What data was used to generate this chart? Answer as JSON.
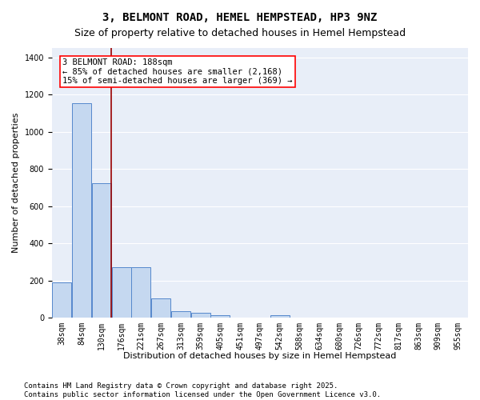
{
  "title1": "3, BELMONT ROAD, HEMEL HEMPSTEAD, HP3 9NZ",
  "title2": "Size of property relative to detached houses in Hemel Hempstead",
  "xlabel": "Distribution of detached houses by size in Hemel Hempstead",
  "ylabel": "Number of detached properties",
  "bar_color": "#c5d8f0",
  "bar_edge_color": "#5588cc",
  "background_color": "#e8eef8",
  "grid_color": "#ffffff",
  "categories": [
    "38sqm",
    "84sqm",
    "130sqm",
    "176sqm",
    "221sqm",
    "267sqm",
    "313sqm",
    "359sqm",
    "405sqm",
    "451sqm",
    "497sqm",
    "542sqm",
    "588sqm",
    "634sqm",
    "680sqm",
    "726sqm",
    "772sqm",
    "817sqm",
    "863sqm",
    "909sqm",
    "955sqm"
  ],
  "values": [
    190,
    1155,
    725,
    270,
    270,
    105,
    35,
    27,
    14,
    0,
    0,
    14,
    0,
    0,
    0,
    0,
    0,
    0,
    0,
    0,
    0
  ],
  "ylim": [
    0,
    1450
  ],
  "yticks": [
    0,
    200,
    400,
    600,
    800,
    1000,
    1200,
    1400
  ],
  "red_line_x": 2.5,
  "annotation_text": "3 BELMONT ROAD: 188sqm\n← 85% of detached houses are smaller (2,168)\n15% of semi-detached houses are larger (369) →",
  "footer": "Contains HM Land Registry data © Crown copyright and database right 2025.\nContains public sector information licensed under the Open Government Licence v3.0.",
  "title_fontsize": 10,
  "subtitle_fontsize": 9,
  "axis_label_fontsize": 8,
  "tick_fontsize": 7,
  "footer_fontsize": 6.5,
  "ann_fontsize": 7.5
}
